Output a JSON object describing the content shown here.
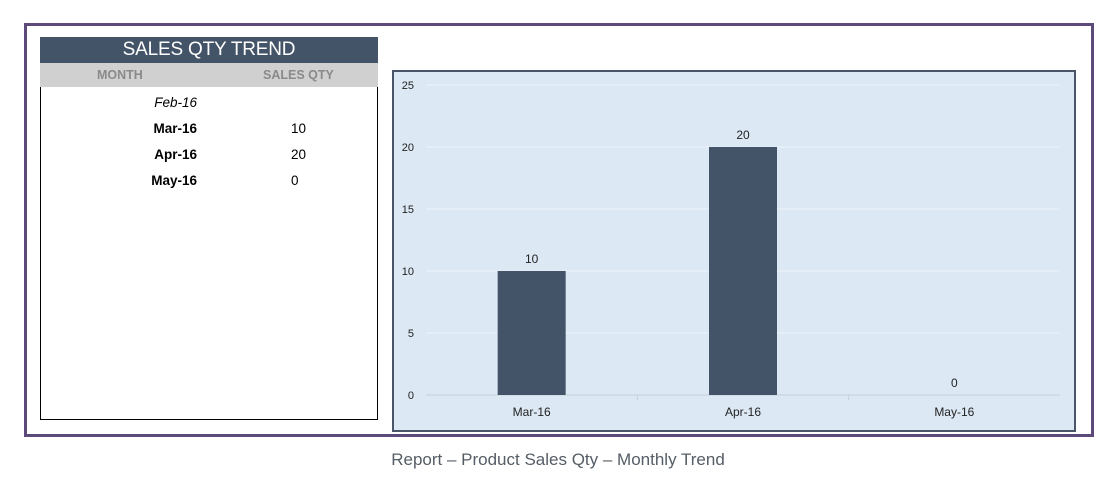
{
  "table": {
    "title": "SALES QTY TREND",
    "headers": {
      "month": "MONTH",
      "qty": "SALES QTY"
    },
    "rows": [
      {
        "month": "Feb-16",
        "qty": ""
      },
      {
        "month": "Mar-16",
        "qty": "10"
      },
      {
        "month": "Apr-16",
        "qty": "20"
      },
      {
        "month": "May-16",
        "qty": "0"
      }
    ]
  },
  "chart_data": {
    "type": "bar",
    "categories": [
      "Mar-16",
      "Apr-16",
      "May-16"
    ],
    "values": [
      10,
      20,
      0
    ],
    "yticks": [
      0,
      5,
      10,
      15,
      20,
      25
    ],
    "ylim": [
      0,
      25
    ],
    "title": "",
    "xlabel": "",
    "ylabel": "",
    "grid": true,
    "bar_color": "#435468",
    "background_color": "#dce8f4",
    "data_labels": true
  },
  "caption": "Report – Product Sales Qty – Monthly Trend",
  "colors": {
    "frame": "#5b4a7a",
    "header": "#435468"
  }
}
